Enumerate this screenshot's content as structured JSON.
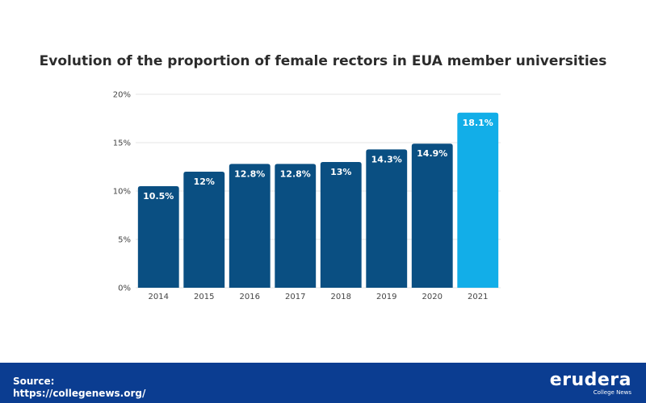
{
  "chart_data": {
    "type": "bar",
    "title": "Evolution of the proportion of female rectors in EUA member universities",
    "categories": [
      "2014",
      "2015",
      "2016",
      "2017",
      "2018",
      "2019",
      "2020",
      "2021"
    ],
    "values": [
      10.5,
      12,
      12.8,
      12.8,
      13,
      14.3,
      14.9,
      18.1
    ],
    "data_labels": [
      "10.5%",
      "12%",
      "12.8%",
      "12.8%",
      "13%",
      "14.3%",
      "14.9%",
      "18.1%"
    ],
    "ylim": [
      0,
      20
    ],
    "yticks": [
      0,
      5,
      10,
      15,
      20
    ],
    "ytick_labels": [
      "0%",
      "5%",
      "10%",
      "15%",
      "20%"
    ],
    "grid": true,
    "colors": {
      "bar": "#0a4f82",
      "highlight_bar": "#12aee8",
      "grid": "#e6e6e6"
    },
    "highlight_index": 7
  },
  "footer": {
    "source_label": "Source:",
    "source_url": "https://collegenews.org/",
    "brand_name": "erudera",
    "brand_sub": "College News",
    "background": "#0b3d91"
  }
}
